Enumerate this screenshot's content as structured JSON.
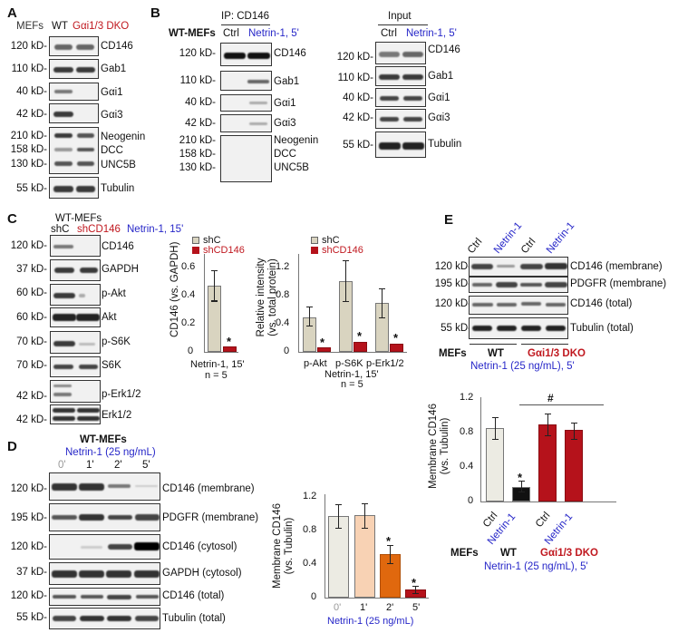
{
  "figure": {
    "panels": [
      "A",
      "B",
      "C",
      "D",
      "E"
    ],
    "colors": {
      "control_red": "#c0181f",
      "treatment_blue": "#2626c8",
      "bar_beige": "#d9d4c0",
      "bar_lightbeige": "#ecebe3",
      "bar_peach": "#f8d2b4",
      "bar_orange": "#e0680e",
      "bar_darkred": "#b5121b",
      "bar_black": "#111111"
    }
  },
  "panelA": {
    "letter": "A",
    "header": {
      "prefix": "MEFs",
      "wt": "WT",
      "dko": "Gαi1/3 DKO"
    },
    "blots": [
      {
        "kd": "120 kD-",
        "label": "CD146"
      },
      {
        "kd": "110 kD-",
        "label": "Gab1"
      },
      {
        "kd": "40 kD-",
        "label": "Gαi1"
      },
      {
        "kd": "42 kD-",
        "label": "Gαi3"
      },
      {
        "kd": "210 kD-",
        "label": "Neogenin"
      },
      {
        "kd": "158 kD-",
        "label": "DCC"
      },
      {
        "kd": "130 kD-",
        "label": "UNC5B"
      },
      {
        "kd": "55 kD-",
        "label": "Tubulin"
      }
    ]
  },
  "panelB": {
    "letter": "B",
    "ip_title": "IP: CD146",
    "input_title": "Input",
    "cell": "WT-MEFs",
    "ctrl": "Ctrl",
    "treat": "Netrin-1, 5'",
    "ip_blots": [
      {
        "kd": "120 kD-",
        "label": "CD146"
      },
      {
        "kd": "110 kD-",
        "label": "Gab1"
      },
      {
        "kd": "40 kD-",
        "label": "Gαi1"
      },
      {
        "kd": "42 kD-",
        "label": "Gαi3"
      },
      {
        "kd": "210 kD-",
        "label": "Neogenin"
      },
      {
        "kd": "158 kD-",
        "label": "DCC"
      },
      {
        "kd": "130 kD-",
        "label": "UNC5B"
      }
    ],
    "input_blots": [
      {
        "kd": "120 kD-",
        "label": "CD146"
      },
      {
        "kd": "110 kD-",
        "label": "Gab1"
      },
      {
        "kd": "40 kD-",
        "label": "Gαi1"
      },
      {
        "kd": "42 kD-",
        "label": "Gαi3"
      },
      {
        "kd": "55 kD-",
        "label": "Tubulin"
      }
    ]
  },
  "panelC": {
    "letter": "C",
    "cell": "WT-MEFs",
    "shc": "shC",
    "shcd146": "shCD146",
    "treat": "Netrin-1, 15'",
    "blots": [
      {
        "kd": "120 kD-",
        "label": "CD146"
      },
      {
        "kd": "37 kD-",
        "label": "GAPDH"
      },
      {
        "kd": "60 kD-",
        "label": "p-Akt"
      },
      {
        "kd": "60 kD-",
        "label": "Akt"
      },
      {
        "kd": "70 kD-",
        "label": "p-S6K"
      },
      {
        "kd": "70 kD-",
        "label": "S6K"
      },
      {
        "kd": "42 kD-",
        "label": "p-Erk1/2"
      },
      {
        "kd": "42 kD-",
        "label": "Erk1/2"
      }
    ],
    "legend": [
      "shC",
      "shCD146"
    ],
    "chart1": {
      "ylabel": "CD146 (vs. GAPDH)",
      "xlabel": "Netrin-1, 15'",
      "n": "n = 5",
      "ticks": [
        "0",
        "0.2",
        "0.4",
        "0.6"
      ],
      "star": "*"
    },
    "chart2": {
      "ylabel1": "Relative intensity",
      "ylabel2": "(vs. total protein)",
      "xlabel": "Netrin-1, 15'",
      "n": "n = 5",
      "ticks": [
        "0",
        "0.4",
        "0.8",
        "1.2"
      ],
      "cats": [
        "p-Akt",
        "p-S6K",
        "p-Erk1/2"
      ],
      "star": "*"
    }
  },
  "panelD": {
    "letter": "D",
    "cell": "WT-MEFs",
    "treat": "Netrin-1 (25 ng/mL)",
    "times": [
      "0'",
      "1'",
      "2'",
      "5'"
    ],
    "blots": [
      {
        "kd": "120 kD-",
        "label": "CD146 (membrane)"
      },
      {
        "kd": "195 kD-",
        "label": "PDGFR (membrane)"
      },
      {
        "kd": "120 kD-",
        "label": "CD146 (cytosol)"
      },
      {
        "kd": "37 kD-",
        "label": "GAPDH (cytosol)"
      },
      {
        "kd": "120 kD-",
        "label": "CD146 (total)"
      },
      {
        "kd": "55 kD-",
        "label": "Tubulin (total)"
      }
    ],
    "chart": {
      "ylabel1": "Membrane CD146",
      "ylabel2": "(vs. Tubulin)",
      "xlabel": "Netrin-1 (25 ng/mL)",
      "ticks": [
        "0",
        "0.4",
        "0.8",
        "1.2"
      ],
      "star": "*"
    }
  },
  "panelE": {
    "letter": "E",
    "lanes": [
      "Ctrl",
      "Netrin-1",
      "Ctrl",
      "Netrin-1"
    ],
    "blots": [
      {
        "kd": "120 kD-",
        "label": "CD146 (membrane)"
      },
      {
        "kd": "195 kD-",
        "label": "PDGFR (membrane)"
      },
      {
        "kd": "120 kD-",
        "label": "CD146 (total)"
      },
      {
        "kd": "55 kD-",
        "label": "Tubulin (total)"
      }
    ],
    "footer": {
      "mefs": "MEFs",
      "wt": "WT",
      "dko": "Gαi1/3 DKO",
      "treat": "Netrin-1 (25 ng/mL), 5'"
    },
    "chart": {
      "ylabel1": "Membrane CD146",
      "ylabel2": "(vs. Tubulin)",
      "ticks": [
        "0",
        "0.4",
        "0.8",
        "1.2"
      ],
      "star": "*",
      "hash": "#"
    }
  },
  "chart_data": [
    {
      "type": "bar",
      "panel": "C-left",
      "title": "",
      "categories": [
        "Netrin-1, 15'"
      ],
      "series": [
        {
          "name": "shC",
          "values": [
            0.48
          ],
          "error": [
            0.11
          ],
          "color": "#d9d4c0"
        },
        {
          "name": "shCD146",
          "values": [
            0.04
          ],
          "error": [
            0.01
          ],
          "color": "#b5121b"
        }
      ],
      "xlabel": "Netrin-1, 15' (n = 5)",
      "ylabel": "CD146 (vs. GAPDH)",
      "ylim": [
        0,
        0.7
      ],
      "yticks": [
        0,
        0.2,
        0.4,
        0.6
      ],
      "annotations": [
        "* on shCD146"
      ],
      "legend_position": "top"
    },
    {
      "type": "bar",
      "panel": "C-right",
      "title": "",
      "categories": [
        "p-Akt",
        "p-S6K",
        "p-Erk1/2"
      ],
      "series": [
        {
          "name": "shC",
          "values": [
            0.49,
            1.0,
            0.69
          ],
          "error": [
            0.13,
            0.29,
            0.21
          ],
          "color": "#d9d4c0"
        },
        {
          "name": "shCD146",
          "values": [
            0.07,
            0.14,
            0.11
          ],
          "error": [
            0.03,
            0.04,
            0.05
          ],
          "color": "#b5121b"
        }
      ],
      "xlabel": "Netrin-1, 15' (n = 5)",
      "ylabel": "Relative intensity (vs. total protein)",
      "ylim": [
        0,
        1.4
      ],
      "yticks": [
        0,
        0.4,
        0.8,
        1.2
      ],
      "annotations": [
        "* on each shCD146 bar"
      ],
      "legend_position": "top"
    },
    {
      "type": "bar",
      "panel": "D",
      "title": "",
      "categories": [
        "0'",
        "1'",
        "2'",
        "5'"
      ],
      "values": [
        0.94,
        0.95,
        0.5,
        0.09
      ],
      "error": [
        0.13,
        0.14,
        0.1,
        0.04
      ],
      "colors": [
        "#ecebe3",
        "#f8d2b4",
        "#e0680e",
        "#b5121b"
      ],
      "xlabel": "Netrin-1 (25 ng/mL)",
      "ylabel": "Membrane CD146 (vs. Tubulin)",
      "ylim": [
        0,
        1.2
      ],
      "yticks": [
        0,
        0.4,
        0.8,
        1.2
      ],
      "annotations": [
        "* on 2'",
        "* on 5'"
      ]
    },
    {
      "type": "bar",
      "panel": "E",
      "title": "",
      "categories": [
        "WT Ctrl",
        "WT Netrin-1",
        "DKO Ctrl",
        "DKO Netrin-1"
      ],
      "values": [
        0.85,
        0.17,
        0.9,
        0.83
      ],
      "error": [
        0.12,
        0.07,
        0.12,
        0.09
      ],
      "colors": [
        "#ecebe3",
        "#111111",
        "#b5121b",
        "#b5121b"
      ],
      "xlabel": "MEFs: WT | Gαi1/3 DKO; Netrin-1 (25 ng/mL), 5'",
      "ylabel": "Membrane CD146 (vs. Tubulin)",
      "ylim": [
        0,
        1.2
      ],
      "yticks": [
        0,
        0.4,
        0.8,
        1.2
      ],
      "annotations": [
        "* on WT Netrin-1",
        "# bracket over WT Netrin-1 to DKO Netrin-1"
      ]
    }
  ]
}
